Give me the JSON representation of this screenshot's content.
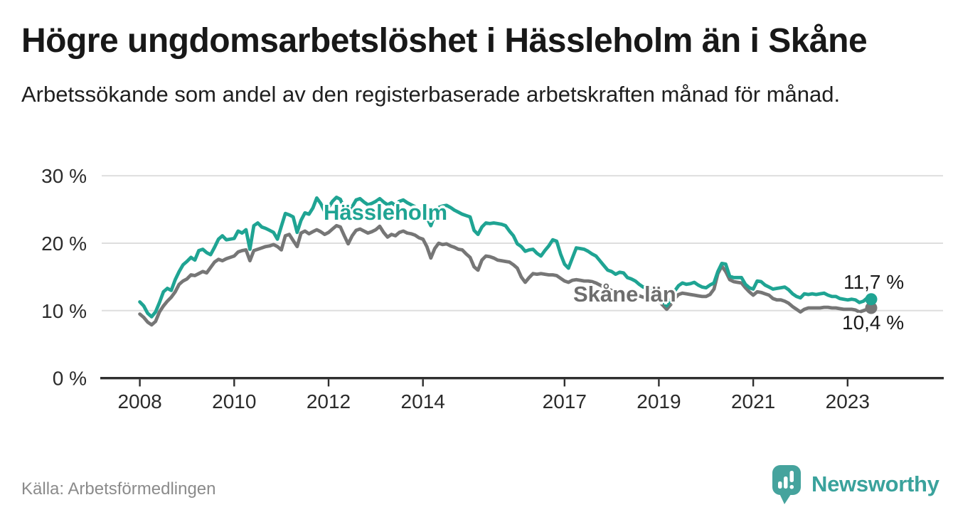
{
  "title": "Högre ungdomsarbetslöshet i Hässleholm än i Skåne",
  "subtitle": "Arbetssökande som andel av den registerbaserade arbetskraften månad för månad.",
  "source": "Källa: Arbetsförmedlingen",
  "logo": {
    "brand": "Newsworthy",
    "icon": "bar-chart-speech-bubble-icon"
  },
  "colors": {
    "hassleholm": "#1fa493",
    "skane": "#767676",
    "skane_label": "#6e6e6e",
    "grid": "#dedede",
    "axis": "#2e2e2e",
    "axis_text": "#2b2b2b",
    "title_text": "#181818",
    "muted_text": "#8b8b8b",
    "logo_teal": "#45a39d"
  },
  "chart_data": {
    "type": "line",
    "unit": "%",
    "frequency": "monthly",
    "x_start": "2008-01",
    "x_end": "2023-07",
    "ylim": [
      0,
      30
    ],
    "grid": true,
    "legend_position": "inline-labels",
    "y_ticks": [
      {
        "value": 30,
        "label": "30 %"
      },
      {
        "value": 20,
        "label": "20 %"
      },
      {
        "value": 10,
        "label": "10 %"
      },
      {
        "value": 0,
        "label": "0 %"
      }
    ],
    "x_ticks": [
      {
        "year": 2008,
        "label": "2008"
      },
      {
        "year": 2010,
        "label": "2010"
      },
      {
        "year": 2012,
        "label": "2012"
      },
      {
        "year": 2014,
        "label": "2014"
      },
      {
        "year": 2017,
        "label": "2017"
      },
      {
        "year": 2019,
        "label": "2019"
      },
      {
        "year": 2021,
        "label": "2021"
      },
      {
        "year": 2023,
        "label": "2023"
      }
    ],
    "series": [
      {
        "name": "Hässleholm",
        "color": "#1fa493",
        "end_label": "11,7 %",
        "end_value": 11.7,
        "values": [
          11.3,
          10.7,
          9.6,
          9.1,
          9.8,
          11.2,
          12.8,
          13.3,
          13.0,
          14.6,
          15.8,
          16.8,
          17.3,
          17.9,
          17.5,
          18.9,
          19.1,
          18.6,
          18.3,
          19.4,
          20.6,
          21.1,
          20.5,
          20.6,
          20.7,
          21.8,
          21.5,
          22.0,
          19.1,
          22.6,
          23.0,
          22.4,
          22.2,
          21.9,
          21.6,
          20.6,
          22.5,
          24.4,
          24.2,
          23.9,
          21.6,
          23.4,
          24.5,
          24.3,
          25.2,
          26.7,
          25.9,
          24.7,
          25.3,
          26.2,
          26.8,
          26.5,
          25.1,
          24.0,
          25.4,
          26.4,
          26.6,
          26.1,
          25.7,
          25.9,
          26.2,
          26.6,
          26.1,
          25.7,
          26.0,
          25.6,
          26.2,
          26.4,
          26.0,
          25.7,
          25.4,
          25.0,
          24.8,
          23.8,
          22.6,
          24.2,
          25.3,
          25.5,
          25.6,
          25.3,
          24.9,
          24.6,
          24.3,
          24.1,
          23.9,
          21.9,
          21.3,
          22.4,
          23.0,
          22.9,
          23.0,
          22.9,
          22.8,
          22.6,
          21.8,
          21.1,
          19.9,
          19.5,
          18.8,
          19.0,
          19.1,
          18.5,
          18.1,
          18.9,
          19.6,
          20.5,
          20.3,
          18.4,
          16.9,
          16.3,
          17.8,
          19.3,
          19.2,
          19.1,
          18.8,
          18.4,
          18.1,
          17.4,
          16.7,
          16.0,
          15.8,
          15.4,
          15.7,
          15.6,
          14.9,
          14.7,
          14.4,
          13.9,
          13.5,
          13.3,
          13.1,
          12.8,
          12.2,
          11.4,
          10.7,
          11.6,
          12.9,
          13.7,
          14.1,
          13.9,
          14.0,
          14.2,
          13.8,
          13.5,
          13.4,
          13.8,
          14.1,
          15.8,
          17.0,
          16.9,
          15.1,
          14.9,
          14.9,
          14.9,
          13.9,
          13.4,
          13.2,
          14.4,
          14.3,
          13.8,
          13.5,
          13.2,
          13.3,
          13.4,
          13.5,
          13.1,
          12.5,
          12.1,
          11.9,
          12.5,
          12.4,
          12.5,
          12.4,
          12.5,
          12.6,
          12.3,
          12.1,
          12.1,
          11.8,
          11.7,
          11.6,
          11.7,
          11.6,
          11.2,
          11.4,
          11.9,
          11.7
        ]
      },
      {
        "name": "Skåne län",
        "color": "#767676",
        "end_label": "10,4 %",
        "end_value": 10.4,
        "values": [
          9.5,
          9.0,
          8.3,
          7.9,
          8.4,
          9.8,
          10.7,
          11.4,
          12.0,
          12.8,
          13.9,
          14.4,
          14.7,
          15.3,
          15.2,
          15.5,
          15.8,
          15.6,
          16.4,
          17.2,
          17.6,
          17.4,
          17.7,
          17.9,
          18.1,
          18.7,
          18.9,
          19.0,
          17.4,
          18.9,
          19.1,
          19.3,
          19.5,
          19.6,
          19.8,
          19.5,
          19.0,
          21.1,
          21.3,
          20.4,
          19.5,
          21.5,
          21.8,
          21.4,
          21.7,
          22.0,
          21.7,
          21.3,
          21.6,
          22.1,
          22.6,
          22.4,
          21.1,
          19.9,
          21.1,
          21.9,
          22.1,
          21.8,
          21.5,
          21.7,
          22.0,
          22.5,
          21.6,
          20.9,
          21.3,
          21.1,
          21.6,
          21.8,
          21.5,
          21.4,
          21.2,
          20.8,
          20.6,
          19.5,
          17.8,
          19.2,
          20.0,
          19.8,
          19.9,
          19.6,
          19.4,
          19.1,
          19.0,
          18.4,
          17.9,
          16.5,
          16.0,
          17.5,
          18.1,
          18.0,
          17.8,
          17.5,
          17.4,
          17.3,
          17.2,
          16.8,
          16.3,
          15.0,
          14.2,
          14.9,
          15.5,
          15.4,
          15.5,
          15.4,
          15.3,
          15.3,
          15.2,
          14.8,
          14.4,
          14.2,
          14.5,
          14.6,
          14.5,
          14.4,
          14.4,
          14.3,
          14.1,
          13.8,
          13.5,
          13.2,
          13.0,
          12.8,
          12.6,
          12.7,
          12.5,
          12.3,
          12.4,
          12.2,
          12.0,
          11.9,
          11.8,
          11.7,
          11.4,
          10.8,
          10.2,
          10.9,
          11.8,
          12.4,
          12.6,
          12.5,
          12.4,
          12.3,
          12.2,
          12.1,
          12.1,
          12.4,
          13.2,
          15.5,
          16.6,
          15.8,
          14.6,
          14.3,
          14.2,
          14.1,
          13.4,
          12.8,
          12.3,
          12.8,
          12.7,
          12.5,
          12.3,
          11.8,
          11.6,
          11.6,
          11.4,
          11.1,
          10.6,
          10.2,
          9.8,
          10.2,
          10.4,
          10.4,
          10.4,
          10.4,
          10.5,
          10.5,
          10.4,
          10.4,
          10.3,
          10.2,
          10.2,
          10.2,
          10.1,
          9.8,
          10.0,
          10.2,
          10.4
        ]
      }
    ]
  }
}
